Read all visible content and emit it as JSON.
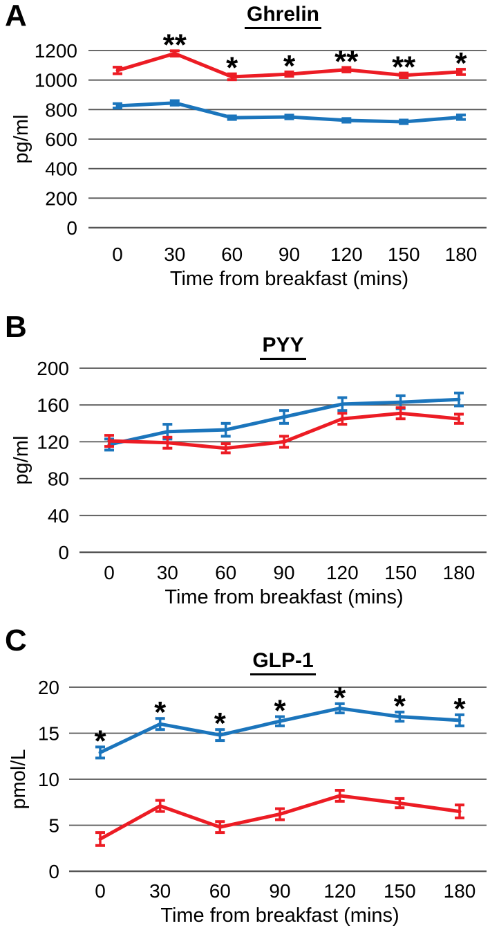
{
  "figure": {
    "panel_labels": [
      "A",
      "B",
      "C"
    ],
    "grid_color": "#555555",
    "background": "#ffffff",
    "series_colors": {
      "blue": "#1B75BC",
      "red": "#EC1C24"
    },
    "significance_symbols": {
      "single": "*",
      "double": "**"
    }
  },
  "chart_data": [
    {
      "type": "line",
      "title": "Ghrelin",
      "xlabel": "Time from breakfast (mins)",
      "ylabel": "pg/ml",
      "categories": [
        "0",
        "30",
        "60",
        "90",
        "120",
        "150",
        "180"
      ],
      "x_values": [
        0,
        30,
        60,
        90,
        120,
        150,
        180
      ],
      "ylim": [
        0,
        1200
      ],
      "yticks": [
        0,
        200,
        400,
        600,
        800,
        1000,
        1200
      ],
      "grid": true,
      "legend": "none",
      "series": [
        {
          "name": "blue-series",
          "color": "#1B75BC",
          "values": [
            825,
            845,
            745,
            750,
            727,
            717,
            748
          ],
          "errors": [
            15,
            15,
            12,
            12,
            12,
            12,
            15
          ],
          "sig": [
            "",
            "",
            "",
            "",
            "",
            "",
            ""
          ]
        },
        {
          "name": "red-series",
          "color": "#EC1C24",
          "values": [
            1065,
            1180,
            1022,
            1040,
            1070,
            1032,
            1055
          ],
          "errors": [
            22,
            18,
            20,
            15,
            15,
            15,
            18
          ],
          "sig": [
            "",
            "**",
            "*",
            "*",
            "**",
            "**",
            "*"
          ]
        }
      ]
    },
    {
      "type": "line",
      "title": "PYY",
      "xlabel": "Time from breakfast (mins)",
      "ylabel": "pg/ml",
      "categories": [
        "0",
        "30",
        "60",
        "90",
        "120",
        "150",
        "180"
      ],
      "x_values": [
        0,
        30,
        60,
        90,
        120,
        150,
        180
      ],
      "ylim": [
        0,
        200
      ],
      "yticks": [
        0,
        40,
        80,
        120,
        160,
        200
      ],
      "grid": true,
      "legend": "none",
      "series": [
        {
          "name": "blue-series",
          "color": "#1B75BC",
          "values": [
            117,
            131,
            133,
            147,
            161,
            163,
            166
          ],
          "errors": [
            6,
            8,
            7,
            7,
            7,
            7,
            7
          ],
          "sig": [
            "",
            "",
            "",
            "",
            "",
            "",
            ""
          ]
        },
        {
          "name": "red-series",
          "color": "#EC1C24",
          "values": [
            121,
            119,
            113,
            120,
            145,
            151,
            145
          ],
          "errors": [
            6,
            6,
            5,
            6,
            6,
            6,
            5
          ],
          "sig": [
            "",
            "",
            "",
            "",
            "",
            "",
            ""
          ]
        }
      ]
    },
    {
      "type": "line",
      "title": "GLP-1",
      "xlabel": "Time from breakfast (mins)",
      "ylabel": "pmol/L",
      "categories": [
        "0",
        "30",
        "60",
        "90",
        "120",
        "150",
        "180"
      ],
      "x_values": [
        0,
        30,
        60,
        90,
        120,
        150,
        180
      ],
      "ylim": [
        0,
        20
      ],
      "yticks": [
        0,
        5,
        10,
        15,
        20
      ],
      "grid": true,
      "legend": "none",
      "series": [
        {
          "name": "blue-series",
          "color": "#1B75BC",
          "values": [
            12.9,
            16.0,
            14.8,
            16.3,
            17.7,
            16.8,
            16.4
          ],
          "errors": [
            0.6,
            0.6,
            0.6,
            0.5,
            0.5,
            0.5,
            0.6
          ],
          "sig": [
            "*",
            "*",
            "*",
            "*",
            "*",
            "*",
            "*"
          ]
        },
        {
          "name": "red-series",
          "color": "#EC1C24",
          "values": [
            3.5,
            7.1,
            4.8,
            6.2,
            8.2,
            7.4,
            6.5
          ],
          "errors": [
            0.7,
            0.6,
            0.6,
            0.6,
            0.6,
            0.5,
            0.7
          ],
          "sig": [
            "",
            "",
            "",
            "",
            "",
            "",
            ""
          ]
        }
      ]
    }
  ]
}
